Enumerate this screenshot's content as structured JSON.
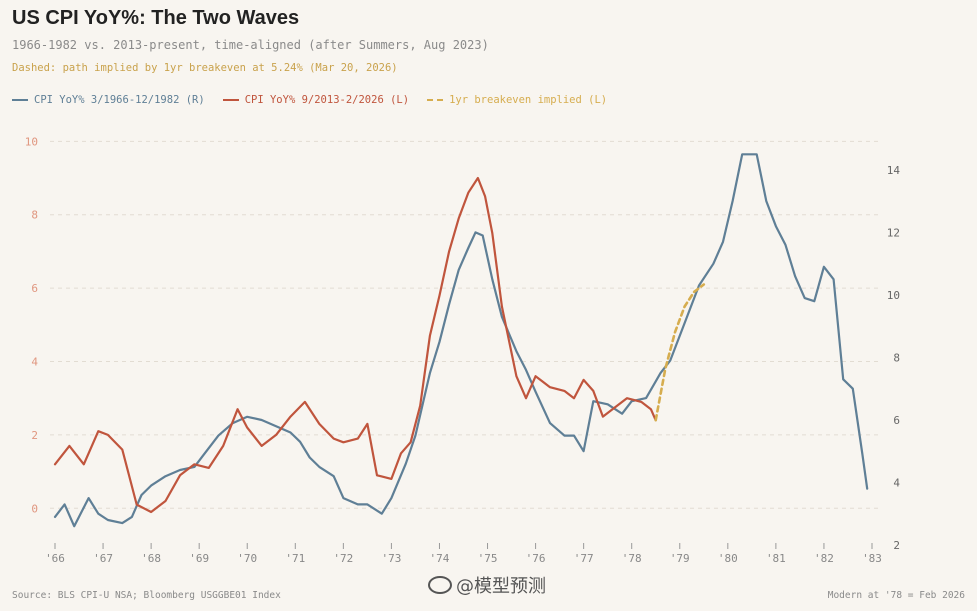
{
  "title": "US CPI YoY%: The Two Waves",
  "subtitle": "1966-1982 vs. 2013-present, time-aligned (after Summers, Aug 2023)",
  "note": "Dashed: path implied by 1yr breakeven at 5.24% (Mar 20, 2026)",
  "colors": {
    "blue": "#5f7f96",
    "red": "#c0553d",
    "gold": "#d6ad4f",
    "grid": "#e2dcd2",
    "left_tick": "#e0967f"
  },
  "legend": [
    {
      "label": "CPI YoY% 3/1966-12/1982 (R)",
      "color": "#5f7f96",
      "style": "solid"
    },
    {
      "label": "CPI YoY% 9/2013-2/2026 (L)",
      "color": "#c0553d",
      "style": "solid"
    },
    {
      "label": "1yr breakeven implied (L)",
      "color": "#d6ad4f",
      "style": "dashed"
    }
  ],
  "footer": {
    "source": "Source: BLS CPI-U NSA; Bloomberg USGGBE01 Index",
    "alignment": "Modern at '78 = Feb 2026",
    "watermark": "@模型预测"
  },
  "chart_data": {
    "type": "line",
    "x_axis": {
      "range": [
        1966,
        1983
      ],
      "tick_labels": [
        "'66",
        "'67",
        "'68",
        "'69",
        "'70",
        "'71",
        "'72",
        "'73",
        "'74",
        "'75",
        "'76",
        "'77",
        "'78",
        "'79",
        "'80",
        "'81",
        "'82",
        "'83"
      ]
    },
    "y_left": {
      "range": [
        -1,
        10.5
      ],
      "ticks": [
        0,
        2,
        4,
        6,
        8,
        10
      ]
    },
    "y_right": {
      "range": [
        2,
        15.5
      ],
      "ticks": [
        2,
        4,
        6,
        8,
        10,
        12,
        14
      ]
    },
    "series": [
      {
        "name": "CPI YoY% 3/1966-12/1982 (R)",
        "axis": "right",
        "color": "#5f7f96",
        "x": [
          1966.0,
          1966.2,
          1966.4,
          1966.7,
          1966.9,
          1967.1,
          1967.4,
          1967.6,
          1967.8,
          1968.0,
          1968.3,
          1968.6,
          1968.9,
          1969.1,
          1969.4,
          1969.7,
          1970.0,
          1970.3,
          1970.6,
          1970.9,
          1971.1,
          1971.3,
          1971.5,
          1971.8,
          1972.0,
          1972.3,
          1972.5,
          1972.8,
          1973.0,
          1973.3,
          1973.5,
          1973.8,
          1974.0,
          1974.2,
          1974.4,
          1974.6,
          1974.75,
          1974.9,
          1975.1,
          1975.3,
          1975.6,
          1975.8,
          1976.0,
          1976.3,
          1976.6,
          1976.8,
          1977.0,
          1977.2,
          1977.5,
          1977.8,
          1978.0,
          1978.3,
          1978.6,
          1978.8,
          1979.1,
          1979.4,
          1979.7,
          1979.9,
          1980.1,
          1980.3,
          1980.6,
          1980.8,
          1981.0,
          1981.2,
          1981.4,
          1981.6,
          1981.8,
          1982.0,
          1982.2,
          1982.4,
          1982.6,
          1982.8,
          1982.9
        ],
        "y": [
          2.9,
          3.3,
          2.6,
          3.5,
          3.0,
          2.8,
          2.7,
          2.9,
          3.6,
          3.9,
          4.2,
          4.4,
          4.5,
          4.9,
          5.5,
          5.9,
          6.1,
          6.0,
          5.8,
          5.6,
          5.3,
          4.8,
          4.5,
          4.2,
          3.5,
          3.3,
          3.3,
          3.0,
          3.5,
          4.6,
          5.5,
          7.5,
          8.5,
          9.7,
          10.8,
          11.5,
          12.0,
          11.9,
          10.5,
          9.3,
          8.2,
          7.6,
          6.9,
          5.9,
          5.5,
          5.5,
          5.0,
          6.6,
          6.5,
          6.2,
          6.6,
          6.7,
          7.5,
          7.9,
          9.1,
          10.3,
          11.0,
          11.7,
          13.0,
          14.5,
          14.5,
          13.0,
          12.2,
          11.6,
          10.6,
          9.9,
          9.8,
          10.9,
          10.5,
          7.3,
          7.0,
          4.9,
          3.8
        ]
      },
      {
        "name": "CPI YoY% 9/2013-2/2026 (L)",
        "axis": "left",
        "color": "#c0553d",
        "x": [
          1966.0,
          1966.3,
          1966.6,
          1966.9,
          1967.1,
          1967.4,
          1967.7,
          1968.0,
          1968.3,
          1968.6,
          1968.9,
          1969.2,
          1969.5,
          1969.8,
          1970.0,
          1970.3,
          1970.6,
          1970.9,
          1971.2,
          1971.5,
          1971.8,
          1972.0,
          1972.3,
          1972.5,
          1972.7,
          1973.0,
          1973.2,
          1973.4,
          1973.6,
          1973.8,
          1974.0,
          1974.2,
          1974.4,
          1974.6,
          1974.8,
          1974.95,
          1975.1,
          1975.3,
          1975.6,
          1975.8,
          1976.0,
          1976.3,
          1976.6,
          1976.8,
          1977.0,
          1977.2,
          1977.4,
          1977.6,
          1977.9,
          1978.2,
          1978.4,
          1978.5
        ],
        "y": [
          1.2,
          1.7,
          1.2,
          2.1,
          2.0,
          1.6,
          0.1,
          -0.1,
          0.2,
          0.9,
          1.2,
          1.1,
          1.7,
          2.7,
          2.2,
          1.7,
          2.0,
          2.5,
          2.9,
          2.3,
          1.9,
          1.8,
          1.9,
          2.3,
          0.9,
          0.8,
          1.5,
          1.8,
          2.8,
          4.7,
          5.8,
          7.0,
          7.9,
          8.6,
          9.0,
          8.5,
          7.5,
          5.5,
          3.6,
          3.0,
          3.6,
          3.3,
          3.2,
          3.0,
          3.5,
          3.2,
          2.5,
          2.7,
          3.0,
          2.9,
          2.7,
          2.4
        ]
      },
      {
        "name": "1yr breakeven implied (L)",
        "axis": "left",
        "color": "#d6ad4f",
        "style": "dashed",
        "x": [
          1978.5,
          1978.7,
          1978.9,
          1979.1,
          1979.3,
          1979.5
        ],
        "y": [
          2.4,
          3.8,
          4.8,
          5.5,
          5.9,
          6.1
        ]
      }
    ]
  }
}
